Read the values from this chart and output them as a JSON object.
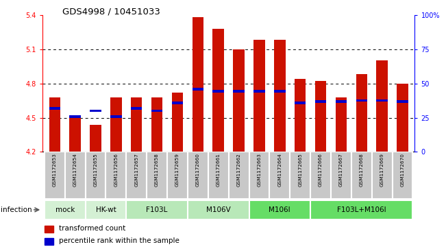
{
  "title": "GDS4998 / 10451033",
  "samples": [
    "GSM1172653",
    "GSM1172654",
    "GSM1172655",
    "GSM1172656",
    "GSM1172657",
    "GSM1172658",
    "GSM1172659",
    "GSM1172660",
    "GSM1172661",
    "GSM1172662",
    "GSM1172663",
    "GSM1172664",
    "GSM1172665",
    "GSM1172666",
    "GSM1172667",
    "GSM1172668",
    "GSM1172669",
    "GSM1172670"
  ],
  "bar_values": [
    4.68,
    4.5,
    4.44,
    4.68,
    4.68,
    4.68,
    4.72,
    5.38,
    5.28,
    5.1,
    5.18,
    5.18,
    4.84,
    4.82,
    4.68,
    4.88,
    5.0,
    4.8
  ],
  "percentile_values": [
    4.58,
    4.51,
    4.56,
    4.51,
    4.58,
    4.56,
    4.63,
    4.75,
    4.73,
    4.73,
    4.73,
    4.73,
    4.63,
    4.64,
    4.64,
    4.65,
    4.65,
    4.64
  ],
  "group_defs": [
    {
      "label": "mock",
      "indices": [
        0,
        1
      ],
      "color": "#d4f0d4"
    },
    {
      "label": "HK-wt",
      "indices": [
        2,
        3
      ],
      "color": "#d4f0d4"
    },
    {
      "label": "F103L",
      "indices": [
        4,
        5,
        6
      ],
      "color": "#b8e8b8"
    },
    {
      "label": "M106V",
      "indices": [
        7,
        8,
        9
      ],
      "color": "#b8e8b8"
    },
    {
      "label": "M106I",
      "indices": [
        10,
        11,
        12
      ],
      "color": "#66dd66"
    },
    {
      "label": "F103L+M106I",
      "indices": [
        13,
        14,
        15,
        16,
        17
      ],
      "color": "#66dd66"
    }
  ],
  "ylim": [
    4.2,
    5.4
  ],
  "yticks": [
    4.2,
    4.5,
    4.8,
    5.1,
    5.4
  ],
  "ytick_labels": [
    "4.2",
    "4.5",
    "4.8",
    "5.1",
    "5.4"
  ],
  "y2ticks": [
    0,
    25,
    50,
    75,
    100
  ],
  "y2tick_labels": [
    "0",
    "25",
    "50",
    "75",
    "100%"
  ],
  "bar_color": "#cc1100",
  "percentile_color": "#0000cc",
  "bar_width": 0.55,
  "sample_bg_color": "#c8c8c8",
  "sample_border_color": "#ffffff"
}
